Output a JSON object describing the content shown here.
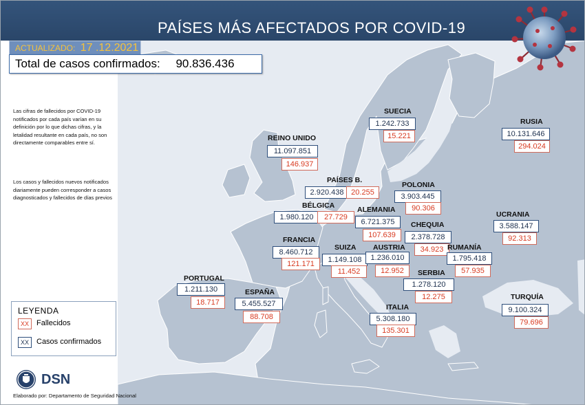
{
  "header": {
    "title": "PAÍSES MÁS AFECTADOS POR COVID-19"
  },
  "updated": {
    "label": "ACTUALIZADO:",
    "value": "17 .12.2021"
  },
  "total": {
    "label": "Total de casos confirmados:",
    "value": "90.836.436"
  },
  "notes": [
    "Las cifras de fallecidos por COVID-19 notificados por cada país varían en su definición por lo que dichas cifras, y la letalidad resultante en cada país, no son directamente comparables entre sí.",
    "Los casos y fallecidos nuevos notificados diariamente pueden corresponder a casos diagnosticados y fallecidos de días previos"
  ],
  "legend": {
    "title": "LEYENDA",
    "marker": "XX",
    "deaths_label": "Fallecidos",
    "cases_label": "Casos confirmados"
  },
  "logo": {
    "text": "DSN"
  },
  "credit": "Elaborado por: Departamento de Seguridad Nacional",
  "colors": {
    "header": "#2a4669",
    "updated_bg": "#6f8fbc",
    "updated_text": "#f6c23a",
    "land": "#b6c2d1",
    "sea": "#e6ebf2",
    "deaths": "#d83a20",
    "cases": "#1c2f4d"
  },
  "icons": {
    "virus": "coronavirus-icon",
    "logo": "dsn-shield-icon"
  },
  "countries": [
    {
      "name": "SUECIA",
      "cases": "1.242.733",
      "deaths": "15.221"
    },
    {
      "name": "RUSIA",
      "cases": "10.131.646",
      "deaths": "294.024"
    },
    {
      "name": "REINO UNIDO",
      "cases": "11.097.851",
      "deaths": "146.937"
    },
    {
      "name": "PAÍSES B.",
      "cases": "2.920.438",
      "deaths": "20.255"
    },
    {
      "name": "POLONIA",
      "cases": "3.903.445",
      "deaths": "90.306"
    },
    {
      "name": "BÉLGICA",
      "cases": "1.980.120",
      "deaths": "27.729"
    },
    {
      "name": "ALEMANIA",
      "cases": "6.721.375",
      "deaths": "107.639"
    },
    {
      "name": "UCRANIA",
      "cases": "3.588.147",
      "deaths": "92.313"
    },
    {
      "name": "CHEQUIA",
      "cases": "2.378.728",
      "deaths": "34.923"
    },
    {
      "name": "FRANCIA",
      "cases": "8.460.712",
      "deaths": "121.171"
    },
    {
      "name": "SUIZA",
      "cases": "1.149.108",
      "deaths": "11.452"
    },
    {
      "name": "AUSTRIA",
      "cases": "1.236.010",
      "deaths": "12.952"
    },
    {
      "name": "RUMANÍA",
      "cases": "1.795.418",
      "deaths": "57.935"
    },
    {
      "name": "PORTUGAL",
      "cases": "1.211.130",
      "deaths": "18.717"
    },
    {
      "name": "SERBIA",
      "cases": "1.278.120",
      "deaths": "12.275"
    },
    {
      "name": "ESPAÑA",
      "cases": "5.455.527",
      "deaths": "88.708"
    },
    {
      "name": "ITALIA",
      "cases": "5.308.180",
      "deaths": "135.301"
    },
    {
      "name": "TURQUÍA",
      "cases": "9.100.324",
      "deaths": "79.696"
    }
  ]
}
